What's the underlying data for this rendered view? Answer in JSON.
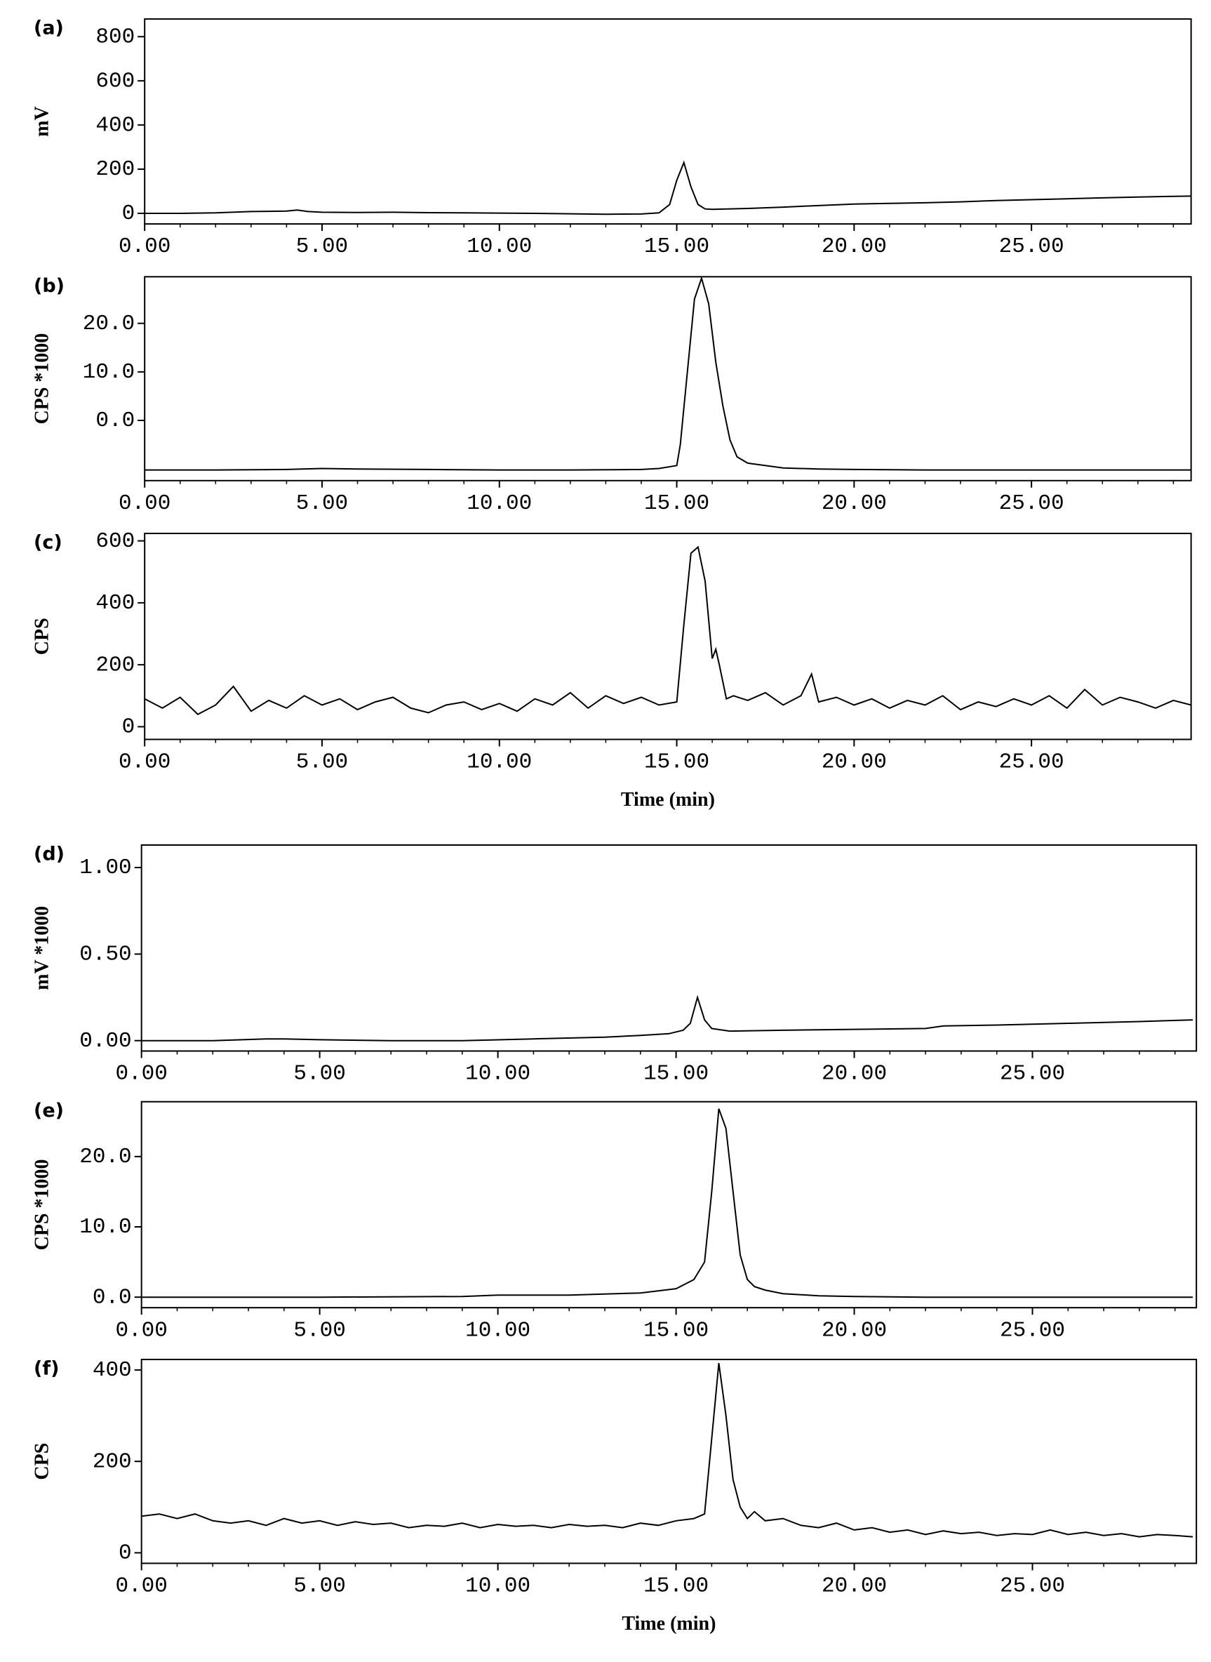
{
  "chart_data": [
    {
      "type": "line",
      "panel": "(a)",
      "ylabel": "mV",
      "color": "#000000",
      "x": [
        0,
        1,
        2,
        3,
        4,
        4.3,
        4.6,
        5,
        6,
        7,
        8,
        9,
        10,
        11,
        12,
        13,
        14,
        14.5,
        14.8,
        15,
        15.2,
        15.4,
        15.6,
        15.8,
        16,
        17,
        18,
        19,
        20,
        21,
        22,
        23,
        24,
        25,
        26,
        27,
        28,
        29,
        29.5
      ],
      "values": [
        0,
        0,
        2,
        8,
        10,
        15,
        8,
        5,
        4,
        5,
        3,
        2,
        1,
        0,
        -2,
        -4,
        -3,
        2,
        40,
        150,
        230,
        120,
        40,
        20,
        18,
        22,
        28,
        35,
        42,
        45,
        48,
        52,
        58,
        62,
        66,
        70,
        74,
        77,
        78
      ],
      "xlim": [
        0,
        29.5
      ],
      "ylim": [
        -48,
        880
      ],
      "xticks": [
        {
          "value": 0,
          "label": "0.00"
        },
        {
          "value": 5,
          "label": "5.00"
        },
        {
          "value": 10,
          "label": "10.00"
        },
        {
          "value": 15,
          "label": "15.00"
        },
        {
          "value": 20,
          "label": "20.00"
        },
        {
          "value": 25,
          "label": "25.00"
        }
      ],
      "yticks": [
        0,
        200,
        400,
        600,
        800
      ]
    },
    {
      "type": "line",
      "panel": "(b)",
      "ylabel": "CPS *1000",
      "color": "#000000",
      "x": [
        0,
        2,
        4,
        5,
        6,
        8,
        10,
        12,
        14,
        14.5,
        15,
        15.1,
        15.3,
        15.5,
        15.7,
        15.9,
        16.1,
        16.3,
        16.5,
        16.7,
        17,
        18,
        19,
        20,
        22,
        25,
        28,
        29.5
      ],
      "values": [
        -10.2,
        -10.2,
        -10.1,
        -9.9,
        -10,
        -10.1,
        -10.2,
        -10.2,
        -10.1,
        -9.9,
        -9.3,
        -5,
        10,
        25,
        29.3,
        24,
        12,
        3,
        -4,
        -7.5,
        -8.8,
        -9.8,
        -10,
        -10.1,
        -10.2,
        -10.2,
        -10.2,
        -10.2
      ],
      "xlim": [
        0,
        29.5
      ],
      "ylim": [
        -12.4,
        29.6
      ],
      "xticks": [
        {
          "value": 0,
          "label": "0.00"
        },
        {
          "value": 5,
          "label": "5.00"
        },
        {
          "value": 10,
          "label": "10.00"
        },
        {
          "value": 15,
          "label": "15.00"
        },
        {
          "value": 20,
          "label": "20.00"
        },
        {
          "value": 25,
          "label": "25.00"
        }
      ],
      "yticks": [
        {
          "value": 0,
          "label": "0.0"
        },
        {
          "value": 10,
          "label": "10.0"
        },
        {
          "value": 20,
          "label": "20.0"
        }
      ]
    },
    {
      "type": "line",
      "panel": "(c)",
      "ylabel": "CPS",
      "xlabel": "Time (min)",
      "color": "#000000",
      "x": [
        0,
        0.5,
        1,
        1.5,
        2,
        2.5,
        3,
        3.5,
        4,
        4.5,
        5,
        5.5,
        6,
        6.5,
        7,
        7.5,
        8,
        8.5,
        9,
        9.5,
        10,
        10.5,
        11,
        11.5,
        12,
        12.5,
        13,
        13.5,
        14,
        14.5,
        15,
        15.2,
        15.4,
        15.6,
        15.8,
        16,
        16.1,
        16.2,
        16.4,
        16.6,
        17,
        17.5,
        18,
        18.5,
        18.8,
        19,
        19.5,
        20,
        20.5,
        21,
        21.5,
        22,
        22.5,
        23,
        23.5,
        24,
        24.5,
        25,
        25.5,
        26,
        26.5,
        27,
        27.5,
        28,
        28.5,
        29,
        29.5
      ],
      "values": [
        90,
        60,
        95,
        40,
        70,
        130,
        50,
        85,
        60,
        100,
        70,
        90,
        55,
        80,
        95,
        60,
        45,
        70,
        80,
        55,
        75,
        50,
        90,
        70,
        110,
        60,
        100,
        75,
        95,
        70,
        80,
        330,
        560,
        580,
        470,
        220,
        250,
        200,
        90,
        100,
        85,
        110,
        70,
        100,
        170,
        80,
        95,
        70,
        90,
        60,
        85,
        70,
        100,
        55,
        80,
        65,
        90,
        70,
        100,
        60,
        120,
        70,
        95,
        80,
        60,
        85,
        70
      ],
      "xlim": [
        0,
        29.5
      ],
      "ylim": [
        -41,
        624
      ],
      "xticks": [
        {
          "value": 0,
          "label": "0.00"
        },
        {
          "value": 5,
          "label": "5.00"
        },
        {
          "value": 10,
          "label": "10.00"
        },
        {
          "value": 15,
          "label": "15.00"
        },
        {
          "value": 20,
          "label": "20.00"
        },
        {
          "value": 25,
          "label": "25.00"
        }
      ],
      "yticks": [
        0,
        200,
        400,
        600
      ]
    },
    {
      "type": "line",
      "panel": "(d)",
      "ylabel": "mV *1000",
      "color": "#000000",
      "x": [
        0,
        2,
        3.5,
        4,
        5,
        7,
        9,
        11,
        13,
        14,
        14.8,
        15.2,
        15.4,
        15.6,
        15.8,
        16,
        16.5,
        18,
        20,
        22,
        22.5,
        24,
        26,
        28,
        29.5
      ],
      "values": [
        0,
        0,
        0.01,
        0.01,
        0.005,
        0,
        0,
        0.01,
        0.02,
        0.03,
        0.04,
        0.06,
        0.1,
        0.25,
        0.12,
        0.07,
        0.055,
        0.06,
        0.065,
        0.07,
        0.085,
        0.09,
        0.1,
        0.11,
        0.12
      ],
      "xlim": [
        0,
        29.6
      ],
      "ylim": [
        -0.06,
        1.13
      ],
      "xticks": [
        {
          "value": 0,
          "label": "0.00"
        },
        {
          "value": 5,
          "label": "5.00"
        },
        {
          "value": 10,
          "label": "10.00"
        },
        {
          "value": 15,
          "label": "15.00"
        },
        {
          "value": 20,
          "label": "20.00"
        },
        {
          "value": 25,
          "label": "25.00"
        }
      ],
      "yticks": [
        {
          "value": 0,
          "label": "0.00"
        },
        {
          "value": 0.5,
          "label": "0.50"
        },
        {
          "value": 1,
          "label": "1.00"
        }
      ]
    },
    {
      "type": "line",
      "panel": "(e)",
      "ylabel": "CPS *1000",
      "color": "#000000",
      "x": [
        0,
        5,
        9,
        10,
        12,
        14,
        15,
        15.5,
        15.8,
        16,
        16.2,
        16.4,
        16.6,
        16.8,
        17,
        17.2,
        17.5,
        18,
        19,
        20,
        22,
        25,
        29.5
      ],
      "values": [
        0,
        0,
        0.1,
        0.3,
        0.3,
        0.6,
        1.2,
        2.5,
        5,
        15,
        26.8,
        24,
        15,
        6,
        2.5,
        1.5,
        1,
        0.5,
        0.2,
        0.1,
        0,
        0,
        0
      ],
      "xlim": [
        0,
        29.6
      ],
      "ylim": [
        -1.5,
        27.8
      ],
      "xticks": [
        {
          "value": 0,
          "label": "0.00"
        },
        {
          "value": 5,
          "label": "5.00"
        },
        {
          "value": 10,
          "label": "10.00"
        },
        {
          "value": 15,
          "label": "15.00"
        },
        {
          "value": 20,
          "label": "20.00"
        },
        {
          "value": 25,
          "label": "25.00"
        }
      ],
      "yticks": [
        {
          "value": 0,
          "label": "0.0"
        },
        {
          "value": 10,
          "label": "10.0"
        },
        {
          "value": 20,
          "label": "20.0"
        }
      ]
    },
    {
      "type": "line",
      "panel": "(f)",
      "ylabel": "CPS",
      "xlabel": "Time (min)",
      "color": "#000000",
      "x": [
        0,
        0.5,
        1,
        1.5,
        2,
        2.5,
        3,
        3.5,
        4,
        4.5,
        5,
        5.5,
        6,
        6.5,
        7,
        7.5,
        8,
        8.5,
        9,
        9.5,
        10,
        10.5,
        11,
        11.5,
        12,
        12.5,
        13,
        13.5,
        14,
        14.5,
        15,
        15.5,
        15.8,
        16,
        16.2,
        16.4,
        16.6,
        16.8,
        17,
        17.2,
        17.5,
        18,
        18.5,
        19,
        19.5,
        20,
        20.5,
        21,
        21.5,
        22,
        22.5,
        23,
        23.5,
        24,
        24.5,
        25,
        25.5,
        26,
        26.5,
        27,
        27.5,
        28,
        28.5,
        29,
        29.5
      ],
      "values": [
        80,
        85,
        75,
        85,
        70,
        65,
        70,
        60,
        75,
        65,
        70,
        60,
        68,
        62,
        65,
        55,
        60,
        58,
        65,
        55,
        62,
        58,
        60,
        55,
        62,
        58,
        60,
        55,
        65,
        60,
        70,
        75,
        85,
        250,
        415,
        300,
        160,
        100,
        75,
        90,
        70,
        75,
        60,
        55,
        65,
        50,
        55,
        45,
        50,
        40,
        48,
        42,
        45,
        38,
        42,
        40,
        50,
        40,
        45,
        38,
        42,
        35,
        40,
        38,
        35
      ],
      "xlim": [
        0,
        29.6
      ],
      "ylim": [
        -23,
        423
      ],
      "xticks": [
        {
          "value": 0,
          "label": "0.00"
        },
        {
          "value": 5,
          "label": "5.00"
        },
        {
          "value": 10,
          "label": "10.00"
        },
        {
          "value": 15,
          "label": "15.00"
        },
        {
          "value": 20,
          "label": "20.00"
        },
        {
          "value": 25,
          "label": "25.00"
        }
      ],
      "yticks": [
        0,
        200,
        400
      ]
    }
  ]
}
